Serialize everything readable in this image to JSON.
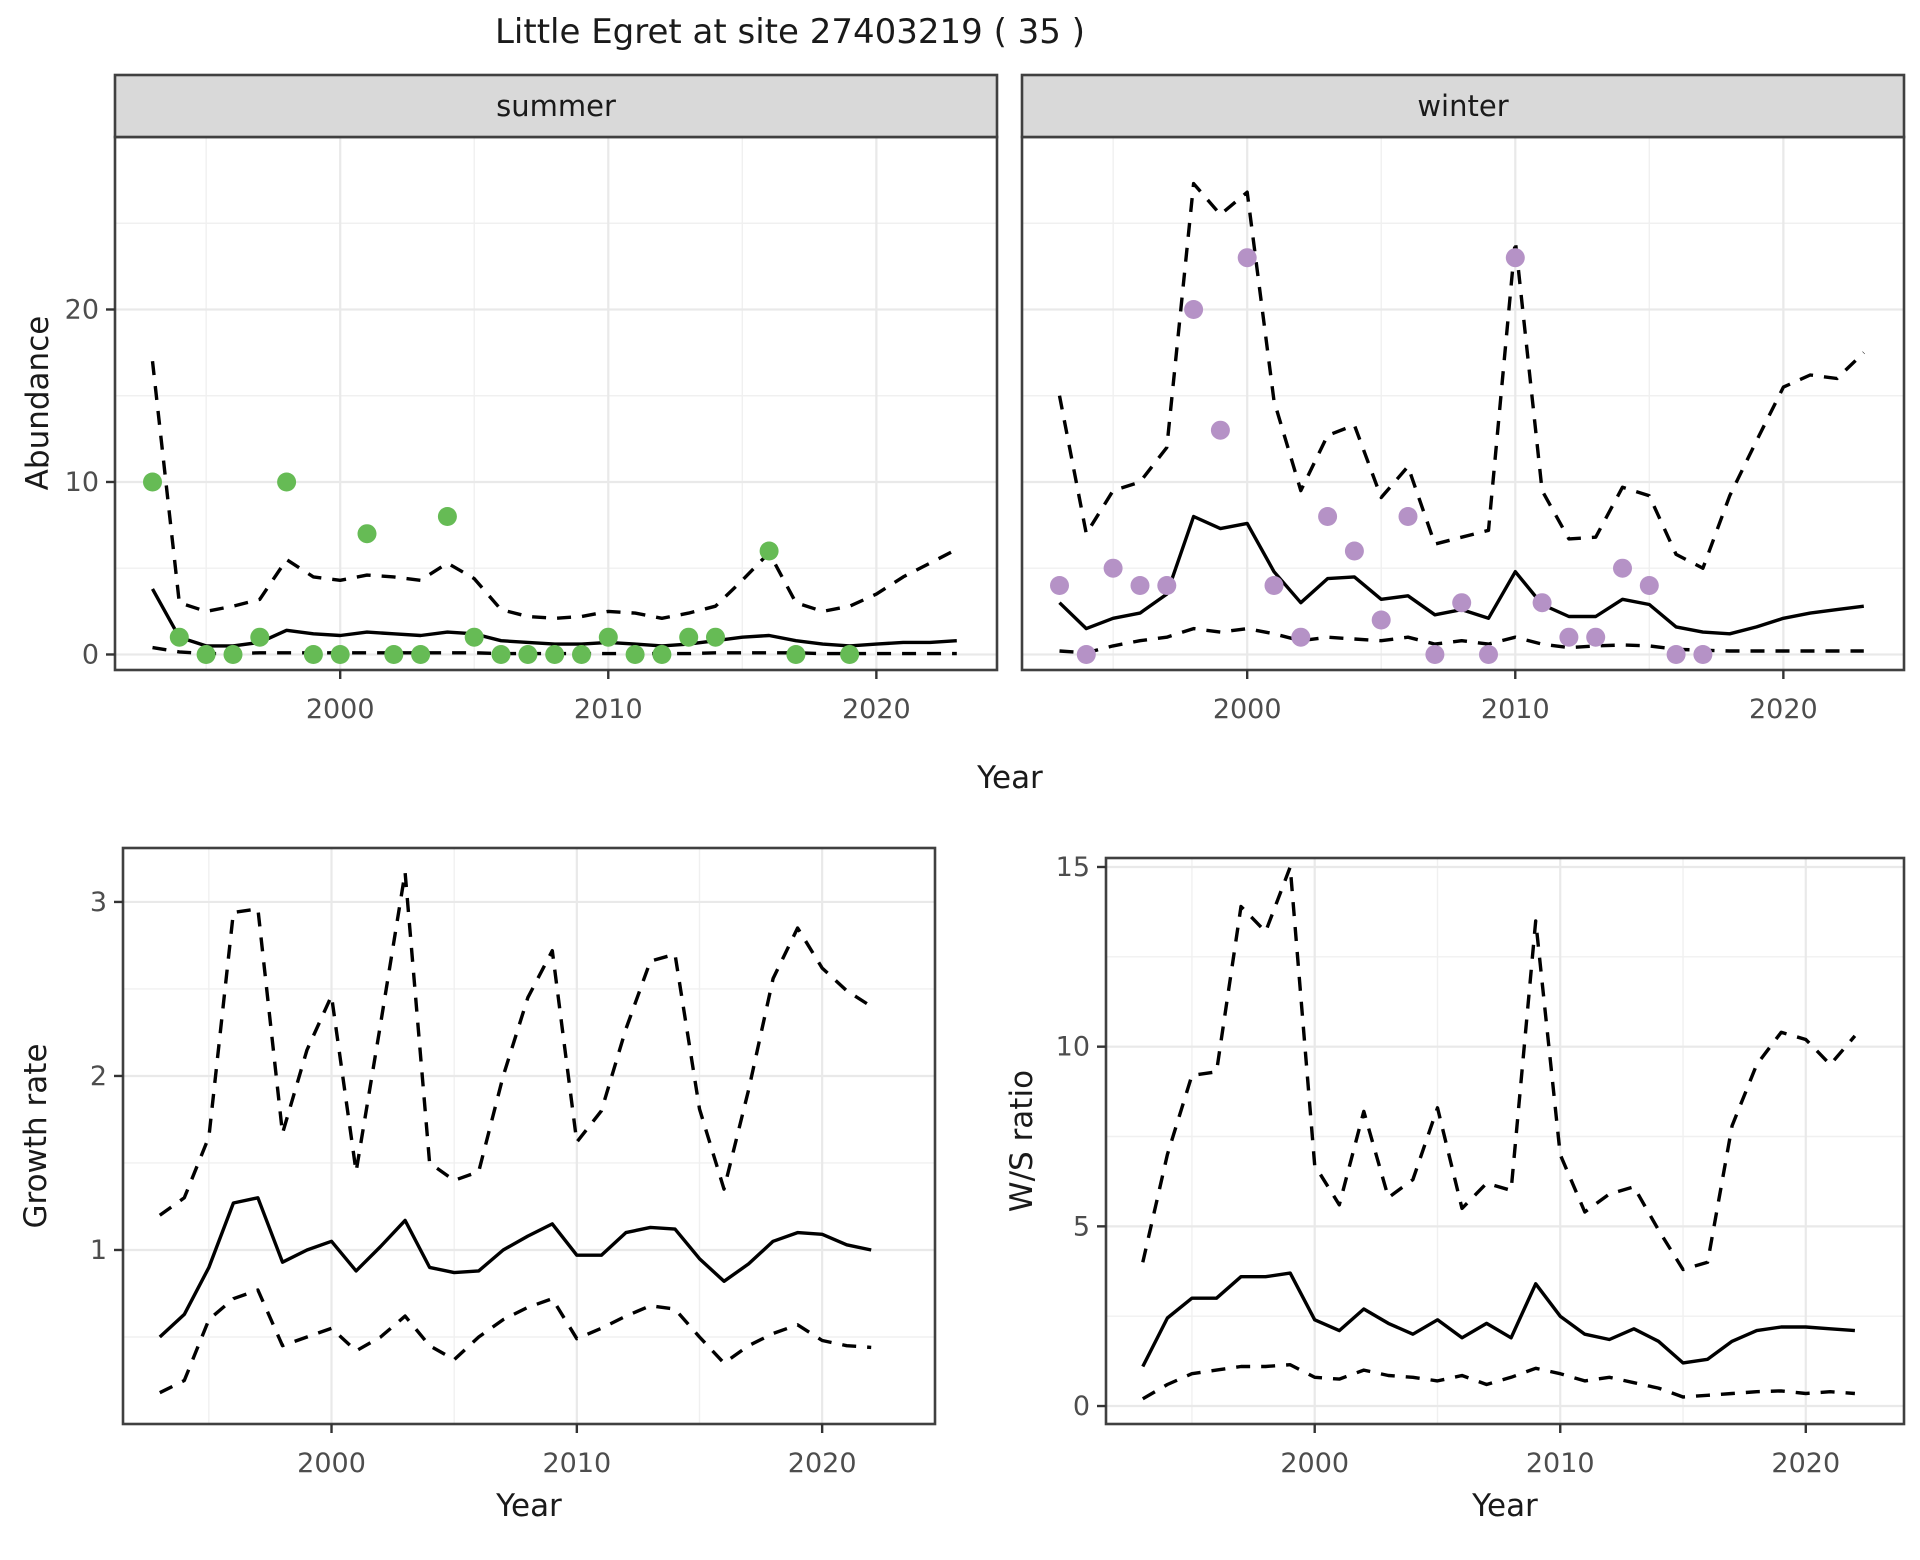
{
  "title": "Little Egret at site 27403219 ( 35 )",
  "top_xlabel": "Year",
  "colors": {
    "summer_point": "#66bb55",
    "winter_point": "#b592c6",
    "line": "#000000",
    "panel_border": "#404040",
    "grid_major": "#e9e9e9",
    "grid_minor": "#f0f0f0",
    "strip_fill": "#d9d9d9",
    "tick_text": "#4d4d4d",
    "tick_mark": "#333333"
  },
  "chart_data": [
    {
      "id": "abundance_summer",
      "type": "line",
      "facet_label": "summer",
      "xlabel": "Year",
      "ylabel": "Abundance",
      "xlim": [
        1991.6,
        2024.5
      ],
      "ylim": [
        -0.9,
        30.0
      ],
      "x_ticks": [
        2000,
        2010,
        2020
      ],
      "x_minor": [
        1995,
        2005,
        2015
      ],
      "y_ticks": [
        0,
        10,
        20
      ],
      "y_minor": [
        5,
        15,
        25
      ],
      "grid": true,
      "legend": "none",
      "years": [
        1993,
        1994,
        1995,
        1996,
        1997,
        1998,
        1999,
        2000,
        2001,
        2002,
        2003,
        2004,
        2005,
        2006,
        2007,
        2008,
        2009,
        2010,
        2011,
        2012,
        2013,
        2014,
        2015,
        2016,
        2017,
        2018,
        2019,
        2020,
        2021,
        2022,
        2023
      ],
      "series": [
        {
          "name": "ci_lower",
          "style": "dashed",
          "values": [
            0.4,
            0.15,
            0.05,
            0.05,
            0.1,
            0.1,
            0.1,
            0.1,
            0.1,
            0.1,
            0.1,
            0.1,
            0.1,
            0.05,
            0.05,
            0.05,
            0.05,
            0.05,
            0.05,
            0.05,
            0.05,
            0.1,
            0.1,
            0.1,
            0.1,
            0.05,
            0.05,
            0.05,
            0.05,
            0.05,
            0.05
          ]
        },
        {
          "name": "ci_upper",
          "style": "dashed",
          "values": [
            17,
            3,
            2.5,
            2.8,
            3.2,
            5.5,
            4.5,
            4.3,
            4.6,
            4.5,
            4.3,
            5.3,
            4.4,
            2.6,
            2.2,
            2.1,
            2.2,
            2.5,
            2.4,
            2.1,
            2.4,
            2.8,
            4.3,
            5.9,
            3,
            2.5,
            2.8,
            3.5,
            4.5,
            5.3,
            6.1
          ]
        },
        {
          "name": "median",
          "style": "solid",
          "values": [
            3.8,
            1,
            0.5,
            0.5,
            0.7,
            1.4,
            1.2,
            1.1,
            1.3,
            1.2,
            1.1,
            1.3,
            1.2,
            0.8,
            0.7,
            0.6,
            0.6,
            0.7,
            0.6,
            0.5,
            0.6,
            0.8,
            1,
            1.1,
            0.8,
            0.6,
            0.5,
            0.6,
            0.7,
            0.7,
            0.8
          ]
        }
      ],
      "points": {
        "color_key": "summer_point",
        "data": [
          [
            1993,
            10
          ],
          [
            1994,
            1
          ],
          [
            1995,
            0
          ],
          [
            1996,
            0
          ],
          [
            1997,
            1
          ],
          [
            1998,
            10
          ],
          [
            1999,
            0
          ],
          [
            2000,
            0
          ],
          [
            2001,
            7
          ],
          [
            2002,
            0
          ],
          [
            2003,
            0
          ],
          [
            2004,
            8
          ],
          [
            2005,
            1
          ],
          [
            2006,
            0
          ],
          [
            2007,
            0
          ],
          [
            2008,
            0
          ],
          [
            2009,
            0
          ],
          [
            2010,
            1
          ],
          [
            2011,
            0
          ],
          [
            2012,
            0
          ],
          [
            2013,
            1
          ],
          [
            2014,
            1
          ],
          [
            2016,
            6
          ],
          [
            2017,
            0
          ],
          [
            2019,
            0
          ]
        ]
      }
    },
    {
      "id": "abundance_winter",
      "type": "line",
      "facet_label": "winter",
      "xlabel": "Year",
      "ylabel": "Abundance",
      "xlim": [
        1991.6,
        2024.5
      ],
      "ylim": [
        -0.9,
        30.0
      ],
      "x_ticks": [
        2000,
        2010,
        2020
      ],
      "x_minor": [
        1995,
        2005,
        2015
      ],
      "y_ticks": [
        0,
        10,
        20
      ],
      "y_minor": [
        5,
        15,
        25
      ],
      "grid": true,
      "legend": "none",
      "years": [
        1993,
        1994,
        1995,
        1996,
        1997,
        1998,
        1999,
        2000,
        2001,
        2002,
        2003,
        2004,
        2005,
        2006,
        2007,
        2008,
        2009,
        2010,
        2011,
        2012,
        2013,
        2014,
        2015,
        2016,
        2017,
        2018,
        2019,
        2020,
        2021,
        2022,
        2023
      ],
      "series": [
        {
          "name": "ci_lower",
          "style": "dashed",
          "values": [
            0.2,
            0.1,
            0.5,
            0.8,
            1,
            1.5,
            1.3,
            1.5,
            1.2,
            0.8,
            1,
            0.9,
            0.8,
            1,
            0.6,
            0.8,
            0.6,
            1,
            0.6,
            0.4,
            0.5,
            0.55,
            0.5,
            0.3,
            0.25,
            0.2,
            0.2,
            0.2,
            0.2,
            0.2,
            0.2
          ]
        },
        {
          "name": "ci_upper",
          "style": "dashed",
          "values": [
            15,
            7,
            9.5,
            10,
            12,
            27.3,
            25.5,
            26.8,
            14.7,
            9.5,
            12.7,
            13.3,
            9.1,
            10.9,
            6.4,
            6.8,
            7.2,
            24,
            9.5,
            6.7,
            6.8,
            9.7,
            9.2,
            5.8,
            5,
            9.2,
            12.4,
            15.5,
            16.2,
            16,
            17.5
          ]
        },
        {
          "name": "median",
          "style": "solid",
          "values": [
            3,
            1.5,
            2.1,
            2.4,
            3.5,
            8,
            7.3,
            7.6,
            4.8,
            3,
            4.4,
            4.5,
            3.2,
            3.4,
            2.3,
            2.6,
            2.1,
            4.8,
            2.9,
            2.2,
            2.2,
            3.2,
            2.9,
            1.6,
            1.3,
            1.2,
            1.6,
            2.1,
            2.4,
            2.6,
            2.8
          ]
        }
      ],
      "points": {
        "color_key": "winter_point",
        "data": [
          [
            1993,
            4
          ],
          [
            1994,
            0
          ],
          [
            1995,
            5
          ],
          [
            1996,
            4
          ],
          [
            1997,
            4
          ],
          [
            1998,
            20
          ],
          [
            1999,
            13
          ],
          [
            2000,
            23
          ],
          [
            2001,
            4
          ],
          [
            2002,
            1
          ],
          [
            2003,
            8
          ],
          [
            2004,
            6
          ],
          [
            2005,
            2
          ],
          [
            2006,
            8
          ],
          [
            2007,
            0
          ],
          [
            2008,
            3
          ],
          [
            2009,
            0
          ],
          [
            2010,
            23
          ],
          [
            2011,
            3
          ],
          [
            2012,
            1
          ],
          [
            2013,
            1
          ],
          [
            2014,
            5
          ],
          [
            2015,
            4
          ],
          [
            2016,
            0
          ],
          [
            2017,
            0
          ]
        ]
      }
    },
    {
      "id": "growth_rate",
      "type": "line",
      "facet_label": null,
      "xlabel": "Year",
      "ylabel": "Growth rate",
      "xlim": [
        1991.5,
        2024.6
      ],
      "ylim": [
        0.0,
        3.31
      ],
      "x_ticks": [
        2000,
        2010,
        2020
      ],
      "x_minor": [
        1995,
        2005,
        2015
      ],
      "y_ticks": [
        1,
        2,
        3
      ],
      "y_minor": [
        0.5,
        1.5,
        2.5
      ],
      "grid": true,
      "legend": "none",
      "years": [
        1993,
        1994,
        1995,
        1996,
        1997,
        1998,
        1999,
        2000,
        2001,
        2002,
        2003,
        2004,
        2005,
        2006,
        2007,
        2008,
        2009,
        2010,
        2011,
        2012,
        2013,
        2014,
        2015,
        2016,
        2017,
        2018,
        2019,
        2020,
        2021,
        2022
      ],
      "series": [
        {
          "name": "ci_lower",
          "style": "dashed",
          "values": [
            0.18,
            0.25,
            0.6,
            0.72,
            0.77,
            0.45,
            0.5,
            0.55,
            0.42,
            0.5,
            0.62,
            0.45,
            0.37,
            0.5,
            0.6,
            0.67,
            0.72,
            0.49,
            0.55,
            0.62,
            0.68,
            0.66,
            0.5,
            0.35,
            0.45,
            0.52,
            0.57,
            0.48,
            0.45,
            0.44
          ]
        },
        {
          "name": "ci_upper",
          "style": "dashed",
          "values": [
            1.2,
            1.3,
            1.65,
            2.94,
            2.96,
            1.67,
            2.15,
            2.46,
            1.45,
            2.3,
            3.17,
            1.5,
            1.4,
            1.45,
            2,
            2.45,
            2.72,
            1.62,
            1.8,
            2.27,
            2.66,
            2.7,
            1.81,
            1.35,
            1.92,
            2.56,
            2.85,
            2.62,
            2.49,
            2.4
          ]
        },
        {
          "name": "median",
          "style": "solid",
          "values": [
            0.5,
            0.63,
            0.9,
            1.27,
            1.3,
            0.93,
            1,
            1.05,
            0.88,
            1.02,
            1.17,
            0.9,
            0.87,
            0.88,
            1,
            1.08,
            1.15,
            0.97,
            0.97,
            1.1,
            1.13,
            1.12,
            0.95,
            0.82,
            0.92,
            1.05,
            1.1,
            1.09,
            1.03,
            1
          ]
        }
      ],
      "points": null
    },
    {
      "id": "ws_ratio",
      "type": "line",
      "facet_label": null,
      "xlabel": "Year",
      "ylabel": "W/S ratio",
      "xlim": [
        1991.5,
        2024.0
      ],
      "ylim": [
        -0.5,
        15.25
      ],
      "x_ticks": [
        2000,
        2010,
        2020
      ],
      "x_minor": [
        1995,
        2005,
        2015
      ],
      "y_ticks": [
        0,
        5,
        10,
        15
      ],
      "y_minor": [
        2.5,
        7.5,
        12.5
      ],
      "grid": true,
      "legend": "none",
      "years": [
        1993,
        1994,
        1995,
        1996,
        1997,
        1998,
        1999,
        2000,
        2001,
        2002,
        2003,
        2004,
        2005,
        2006,
        2007,
        2008,
        2009,
        2010,
        2011,
        2012,
        2013,
        2014,
        2015,
        2016,
        2017,
        2018,
        2019,
        2020,
        2021,
        2022
      ],
      "series": [
        {
          "name": "ci_lower",
          "style": "dashed",
          "values": [
            0.2,
            0.6,
            0.9,
            1,
            1.1,
            1.1,
            1.15,
            0.8,
            0.75,
            1,
            0.85,
            0.8,
            0.7,
            0.85,
            0.6,
            0.8,
            1.05,
            0.9,
            0.7,
            0.8,
            0.65,
            0.5,
            0.25,
            0.3,
            0.35,
            0.4,
            0.42,
            0.35,
            0.4,
            0.35
          ]
        },
        {
          "name": "ci_upper",
          "style": "dashed",
          "values": [
            4,
            7,
            9.2,
            9.3,
            13.9,
            13.2,
            15,
            6.7,
            5.6,
            8.2,
            5.8,
            6.3,
            8.3,
            5.5,
            6.2,
            6,
            13.5,
            7,
            5.4,
            5.9,
            6.1,
            4.9,
            3.8,
            4,
            7.8,
            9.5,
            10.4,
            10.2,
            9.5,
            10.3
          ]
        },
        {
          "name": "median",
          "style": "solid",
          "values": [
            1.1,
            2.45,
            3,
            3,
            3.6,
            3.6,
            3.7,
            2.4,
            2.1,
            2.7,
            2.3,
            2,
            2.4,
            1.9,
            2.3,
            1.9,
            3.4,
            2.5,
            2,
            1.85,
            2.15,
            1.8,
            1.2,
            1.3,
            1.8,
            2.1,
            2.2,
            2.2,
            2.15,
            2.1
          ]
        }
      ],
      "points": null
    }
  ]
}
